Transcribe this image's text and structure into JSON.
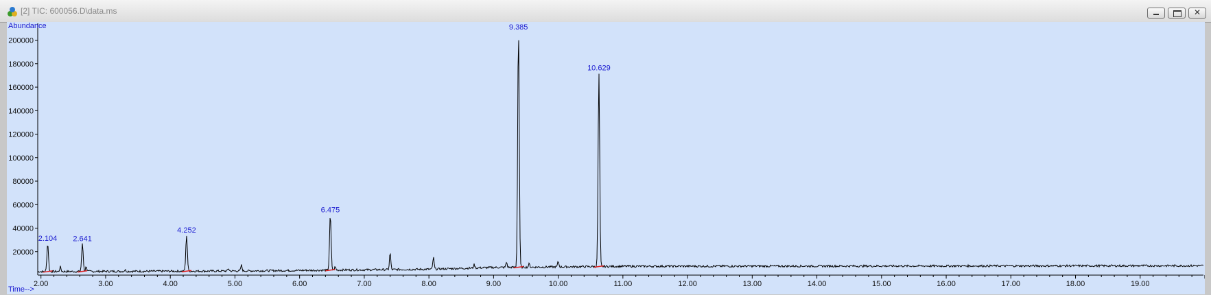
{
  "window": {
    "title": "[2] TIC: 600056.D\\data.ms",
    "icon": "chromatogram-app-icon",
    "buttons": {
      "minimize": "minimize-icon",
      "maximize": "maximize-icon",
      "close": "✕"
    }
  },
  "colors": {
    "plot_bg": "#d2e2fa",
    "trace": "#000000",
    "peak_label": "#1a1ad0",
    "baseline_mark": "#e02020"
  },
  "chart_data": {
    "type": "line",
    "xlabel": "Time-->",
    "ylabel": "Abundance",
    "xlim": [
      1.95,
      20.0
    ],
    "ylim": [
      0,
      212000
    ],
    "x_ticks": [
      {
        "value": 2.0,
        "label": "2.00"
      },
      {
        "value": 3.0,
        "label": "3.00"
      },
      {
        "value": 4.0,
        "label": "4.00"
      },
      {
        "value": 5.0,
        "label": "5.00"
      },
      {
        "value": 6.0,
        "label": "6.00"
      },
      {
        "value": 7.0,
        "label": "7.00"
      },
      {
        "value": 8.0,
        "label": "8.00"
      },
      {
        "value": 9.0,
        "label": "9.00"
      },
      {
        "value": 10.0,
        "label": "10.00"
      },
      {
        "value": 11.0,
        "label": "11.00"
      },
      {
        "value": 12.0,
        "label": "12.00"
      },
      {
        "value": 13.0,
        "label": "13.00"
      },
      {
        "value": 14.0,
        "label": "14.00"
      },
      {
        "value": 15.0,
        "label": "15.00"
      },
      {
        "value": 16.0,
        "label": "16.00"
      },
      {
        "value": 17.0,
        "label": "17.00"
      },
      {
        "value": 18.0,
        "label": "18.00"
      },
      {
        "value": 19.0,
        "label": "19.00"
      }
    ],
    "y_ticks": [
      {
        "value": 20000,
        "label": "20000"
      },
      {
        "value": 40000,
        "label": "40000"
      },
      {
        "value": 60000,
        "label": "60000"
      },
      {
        "value": 80000,
        "label": "80000"
      },
      {
        "value": 100000,
        "label": "100000"
      },
      {
        "value": 120000,
        "label": "120000"
      },
      {
        "value": 140000,
        "label": "140000"
      },
      {
        "value": 160000,
        "label": "160000"
      },
      {
        "value": 180000,
        "label": "180000"
      },
      {
        "value": 200000,
        "label": "200000"
      }
    ],
    "baseline": [
      [
        1.95,
        3000
      ],
      [
        5.0,
        3500
      ],
      [
        8.0,
        5000
      ],
      [
        9.0,
        6500
      ],
      [
        11.0,
        7500
      ],
      [
        20.0,
        8000
      ]
    ],
    "labeled_peaks": [
      {
        "time": 2.104,
        "label": "2.104",
        "height": 27000
      },
      {
        "time": 2.641,
        "label": "2.641",
        "height": 26500
      },
      {
        "time": 4.252,
        "label": "4.252",
        "height": 34000
      },
      {
        "time": 6.475,
        "label": "6.475",
        "height": 51000
      },
      {
        "time": 9.385,
        "label": "9.385",
        "height": 209000
      },
      {
        "time": 10.629,
        "label": "10.629",
        "height": 172000
      }
    ],
    "minor_peaks": [
      {
        "time": 2.3,
        "height": 7000
      },
      {
        "time": 2.7,
        "height": 7500
      },
      {
        "time": 3.3,
        "height": 4500
      },
      {
        "time": 4.9,
        "height": 5500
      },
      {
        "time": 5.1,
        "height": 8500
      },
      {
        "time": 6.55,
        "height": 7000
      },
      {
        "time": 7.4,
        "height": 19000
      },
      {
        "time": 8.07,
        "height": 15000
      },
      {
        "time": 8.7,
        "height": 9000
      },
      {
        "time": 9.2,
        "height": 11000
      },
      {
        "time": 9.55,
        "height": 9500
      },
      {
        "time": 10.0,
        "height": 11500
      }
    ]
  }
}
